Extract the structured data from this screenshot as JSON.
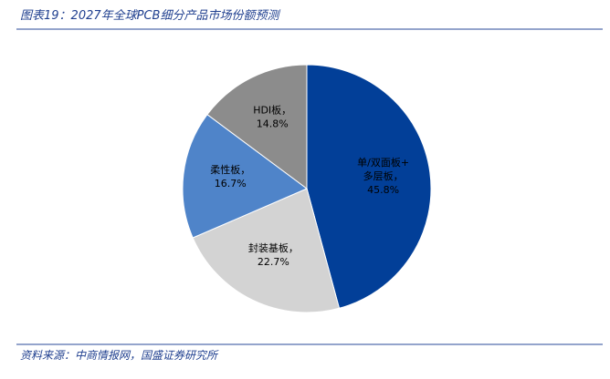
{
  "title": "图表19：2027年全球PCB细分产品市场份额预测",
  "source": "资料来源：中商情报网，国盛证券研究所",
  "chart_data": {
    "type": "pie",
    "categories": [
      "单/双面板+多层板，",
      "封装基板，",
      "柔性板，",
      "HDI板，"
    ],
    "values": [
      45.8,
      22.7,
      16.7,
      14.8
    ],
    "value_labels": [
      "45.8%",
      "22.7%",
      "16.7%",
      "14.8%"
    ],
    "colors": [
      "#023f98",
      "#d3d3d3",
      "#4f84c9",
      "#8c8c8c"
    ]
  }
}
